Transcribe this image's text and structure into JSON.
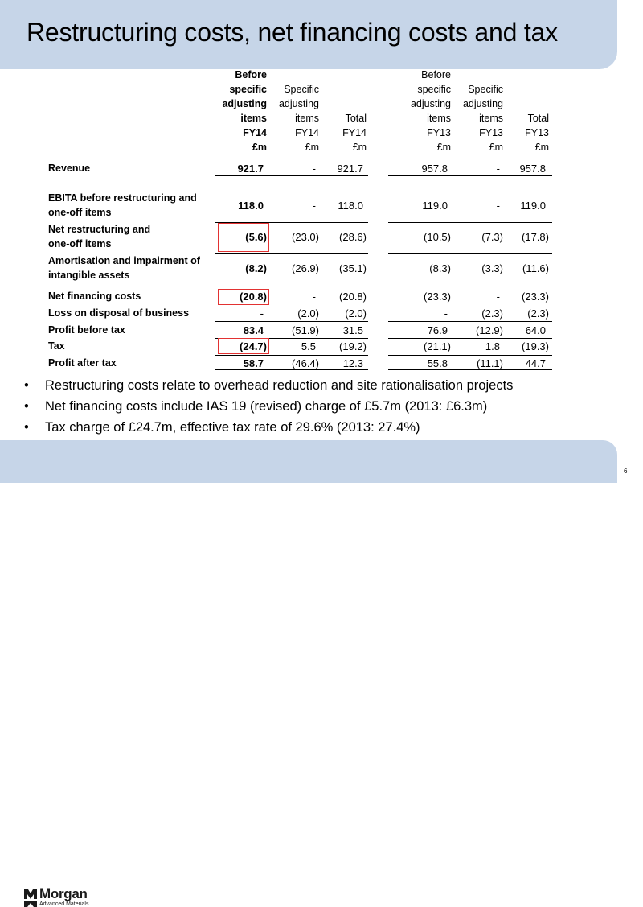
{
  "title": "Restructuring costs, net financing costs and tax",
  "page_number": "6",
  "logo": {
    "name": "Morgan",
    "subtitle": "Advanced Materials"
  },
  "columns": [
    {
      "lines": [
        "Before",
        "specific",
        "adjusting",
        "items",
        "FY14",
        "£m"
      ],
      "bold": true
    },
    {
      "lines": [
        "Specific",
        "adjusting",
        "items",
        "FY14",
        "£m"
      ]
    },
    {
      "lines": [
        "Total",
        "FY14",
        "£m"
      ]
    },
    {
      "lines": [
        "Before",
        "specific",
        "adjusting",
        "items",
        "FY13",
        "£m"
      ]
    },
    {
      "lines": [
        "Specific",
        "adjusting",
        "items",
        "FY13",
        "£m"
      ]
    },
    {
      "lines": [
        "Total",
        "FY13",
        "£m"
      ]
    }
  ],
  "rows": [
    {
      "label": [
        "Revenue"
      ],
      "values": [
        "921.7",
        "-",
        "921.7",
        "957.8",
        "-",
        "957.8"
      ]
    },
    {
      "label": [
        "EBITA before restructuring and",
        "one-off items"
      ],
      "values": [
        "118.0",
        "-",
        "118.0",
        "119.0",
        "-",
        "119.0"
      ]
    },
    {
      "label": [
        "Net restructuring and",
        "one-off items"
      ],
      "values": [
        "(5.6)",
        "(23.0)",
        "(28.6)",
        "(10.5)",
        "(7.3)",
        "(17.8)"
      ]
    },
    {
      "label": [
        "Amortisation and impairment of",
        "intangible assets"
      ],
      "values": [
        "(8.2)",
        "(26.9)",
        "(35.1)",
        "(8.3)",
        "(3.3)",
        "(11.6)"
      ]
    },
    {
      "label": [
        "Net financing costs"
      ],
      "values": [
        "(20.8)",
        "-",
        "(20.8)",
        "(23.3)",
        "-",
        "(23.3)"
      ]
    },
    {
      "label": [
        "Loss on disposal of business"
      ],
      "values": [
        "-",
        "(2.0)",
        "(2.0)",
        "-",
        "(2.3)",
        "(2.3)"
      ]
    },
    {
      "label": [
        "Profit before tax"
      ],
      "values": [
        "83.4",
        "(51.9)",
        "31.5",
        "76.9",
        "(12.9)",
        "64.0"
      ]
    },
    {
      "label": [
        "Tax"
      ],
      "values": [
        "(24.7)",
        "5.5",
        "(19.2)",
        "(21.1)",
        "1.8",
        "(19.3)"
      ]
    },
    {
      "label": [
        "Profit after tax"
      ],
      "values": [
        "58.7",
        "(46.4)",
        "12.3",
        "55.8",
        "(11.1)",
        "44.7"
      ]
    }
  ],
  "bullets": [
    "Restructuring costs relate to overhead reduction and site rationalisation projects",
    "Net financing costs include IAS 19 (revised) charge of £5.7m (2013: £6.3m)",
    "Tax charge of £24.7m, effective tax rate of 29.6% (2013: 27.4%)"
  ],
  "highlight_color": "#e23232",
  "accent_color": "#c6d5e8"
}
